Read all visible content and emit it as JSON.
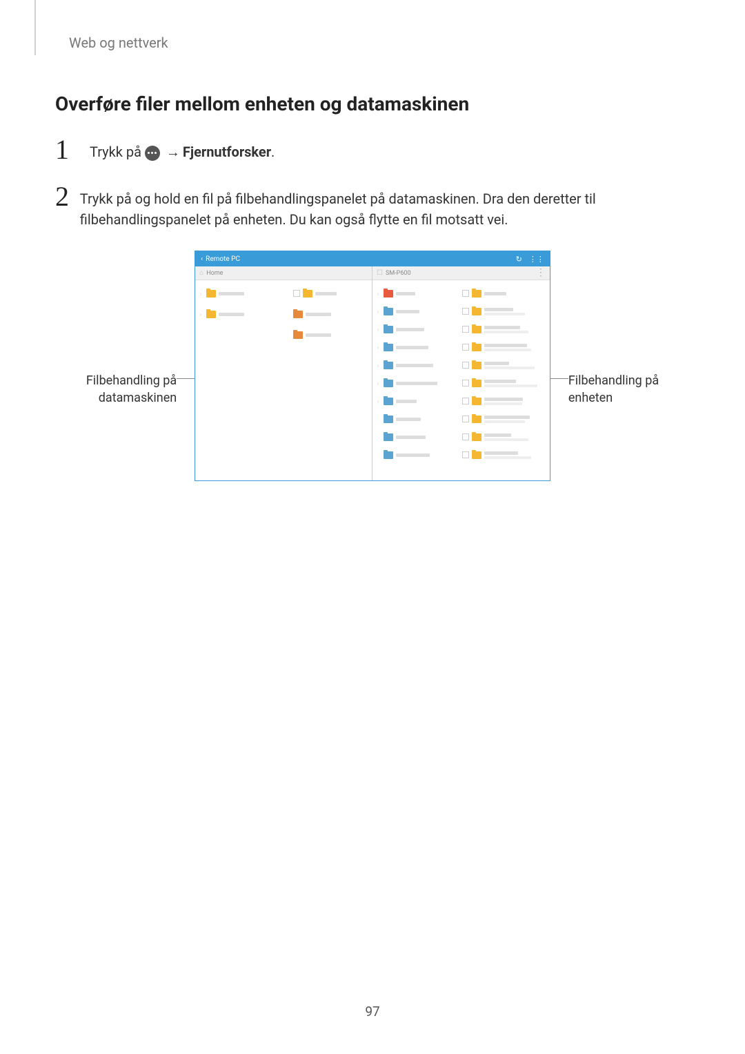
{
  "section": "Web og nettverk",
  "heading": "Overføre filer mellom enheten og datamaskinen",
  "steps": {
    "s1": {
      "num": "1",
      "pre": "Trykk på ",
      "post_arrow": " → ",
      "bold": "Fjernutforsker",
      "end": "."
    },
    "s2": {
      "num": "2",
      "text": "Trykk på og hold en fil på filbehandlingspanelet på datamaskinen. Dra den deretter til filbehandlingspanelet på enheten. Du kan også flytte en fil motsatt vei."
    }
  },
  "callouts": {
    "left_l1": "Filbehandling på",
    "left_l2": "datamaskinen",
    "right_l1": "Filbehandling på",
    "right_l2": "enheten"
  },
  "ui": {
    "title_back": "‹",
    "title": "Remote PC",
    "refresh": "↻",
    "grid": "⋮⋮",
    "left_header_icon": "⌂",
    "left_header": "Home",
    "right_header_icon": "☐",
    "right_header": "SM-P600",
    "vmore": "⋮",
    "colors": {
      "titlebar": "#3a9bd9",
      "header_bg": "#f0f0f0",
      "folder_yellow": "#f5b731",
      "folder_orange": "#e8883b",
      "folder_red": "#e85a3b",
      "folder_blue": "#5ba3d0",
      "text_muted": "#bbbbbb"
    },
    "left_items": [
      {
        "expander": "›",
        "color": "#f5b731",
        "lines": 1
      },
      {
        "expander": " ",
        "color": "#f5b731",
        "lines": 1,
        "check": true
      },
      {
        "expander": "›",
        "color": "#f5b731",
        "lines": 1
      },
      {
        "expander": " ",
        "color": "#e8883b",
        "lines": 1
      },
      {
        "expander": " ",
        "color": "#e8883b",
        "lines": 1
      }
    ],
    "right_left_col": [
      {
        "color": "#e85a3b",
        "lines": 1
      },
      {
        "color": "#5ba3d0",
        "lines": 1
      },
      {
        "color": "#5ba3d0",
        "lines": 1
      },
      {
        "color": "#5ba3d0",
        "lines": 1
      },
      {
        "color": "#5ba3d0",
        "lines": 1
      },
      {
        "color": "#5ba3d0",
        "lines": 1
      },
      {
        "color": "#5ba3d0",
        "lines": 1
      },
      {
        "color": "#5ba3d0",
        "lines": 1
      },
      {
        "color": "#5ba3d0",
        "lines": 1
      },
      {
        "color": "#5ba3d0",
        "lines": 1
      }
    ],
    "right_right_col": [
      {
        "color": "#f5b731",
        "lines": 1
      },
      {
        "color": "#f5b731",
        "lines": 2
      },
      {
        "color": "#f5b731",
        "lines": 2
      },
      {
        "color": "#f5b731",
        "lines": 2
      },
      {
        "color": "#f5b731",
        "lines": 2
      },
      {
        "color": "#f5b731",
        "lines": 2
      },
      {
        "color": "#f5b731",
        "lines": 2
      },
      {
        "color": "#f5b731",
        "lines": 2
      },
      {
        "color": "#f5b731",
        "lines": 2
      },
      {
        "color": "#f5b731",
        "lines": 2
      }
    ]
  },
  "page_number": "97"
}
